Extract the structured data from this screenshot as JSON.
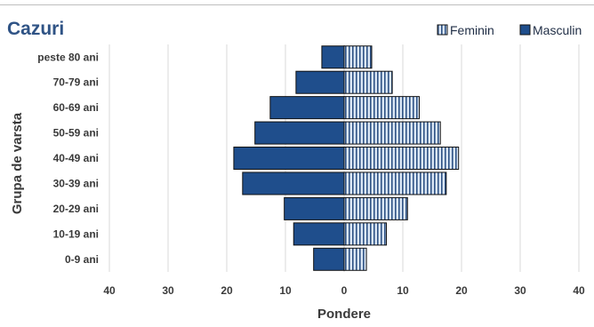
{
  "chart_data": {
    "type": "bar",
    "orientation": "horizontal",
    "subtype": "population-pyramid",
    "title": "Cazuri",
    "xlabel": "Pondere",
    "ylabel": "Grupa de varsta",
    "categories": [
      "0-9 ani",
      "10-19 ani",
      "20-29 ani",
      "30-39 ani",
      "40-49 ani",
      "50-59 ani",
      "60-69 ani",
      "70-79 ani",
      "peste 80 ani"
    ],
    "series": [
      {
        "name": "Feminin",
        "side": "right",
        "color": "#dbe7f5",
        "pattern": "vertical-stripes",
        "values": [
          3.8,
          7.2,
          10.8,
          17.4,
          19.5,
          16.4,
          12.8,
          8.2,
          4.7
        ]
      },
      {
        "name": "Masculin",
        "side": "left",
        "color": "#1f4e8c",
        "pattern": "solid",
        "values": [
          5.2,
          8.6,
          10.2,
          17.3,
          18.8,
          15.2,
          12.6,
          8.2,
          3.8
        ]
      }
    ],
    "xlim": [
      -40,
      40
    ],
    "xticks": [
      -40,
      -30,
      -20,
      -10,
      0,
      10,
      20,
      30,
      40
    ],
    "xtick_labels": [
      "40",
      "30",
      "20",
      "10",
      "0",
      "10",
      "20",
      "30",
      "40"
    ],
    "grid": true,
    "legend_position": "top-right"
  }
}
